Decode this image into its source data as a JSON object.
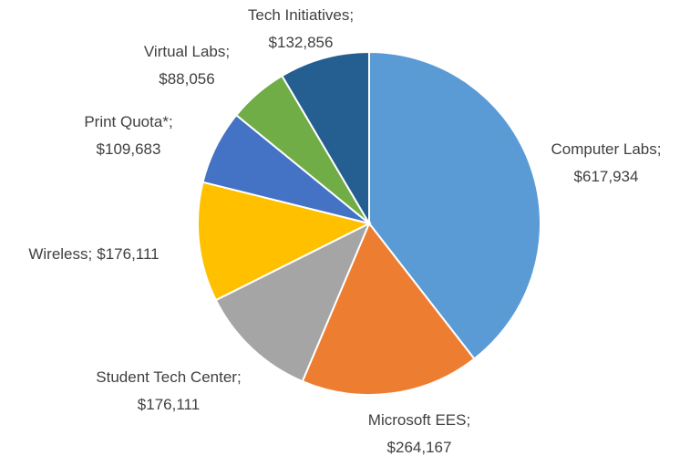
{
  "chart_data": {
    "type": "pie",
    "categories": [
      "Computer Labs",
      "Microsoft EES",
      "Student Tech Center",
      "Wireless",
      "Print Quota*",
      "Virtual Labs",
      "Tech Initiatives"
    ],
    "values": [
      617934,
      264167,
      176111,
      176111,
      109683,
      88056,
      132856
    ],
    "value_labels": [
      "$617,934",
      "$264,167",
      "$176,111",
      "$176,111",
      "$109,683",
      "$88,056",
      "$132,856"
    ],
    "label_separator": ";",
    "colors": [
      "#5b9bd5",
      "#ed7d31",
      "#a5a5a5",
      "#ffc000",
      "#4472c4",
      "#70ad47",
      "#255e91"
    ]
  }
}
